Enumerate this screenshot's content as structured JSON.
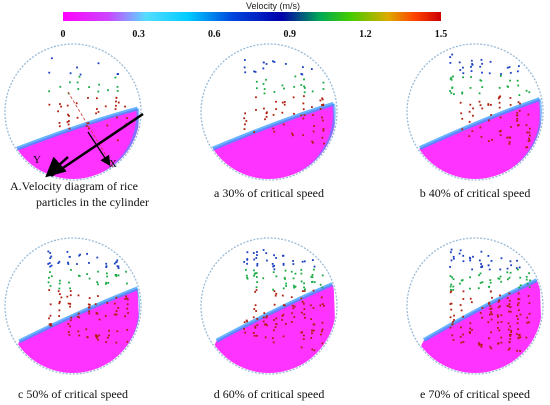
{
  "colorbar": {
    "title": "Velocity (m/s)",
    "ticks": [
      "0",
      "0.3",
      "0.6",
      "0.9",
      "1.2",
      "1.5"
    ],
    "colors": [
      "#ff00ff",
      "#cc33ff",
      "#66ccff",
      "#00e5ff",
      "#0033cc",
      "#0000aa",
      "#00aa44",
      "#33cc00",
      "#ccaa00",
      "#ff3300",
      "#cc0000"
    ]
  },
  "panels": [
    {
      "id": "A",
      "caption_line1": "A.Velocity diagram of rice",
      "caption_line2": "particles in the cylinder",
      "axis_x": "X",
      "axis_y": "Y",
      "critical_speed_pct": null
    },
    {
      "id": "a",
      "caption": "a 30% of critical speed",
      "critical_speed_pct": 30
    },
    {
      "id": "b",
      "caption": "b 40% of critical speed",
      "critical_speed_pct": 40
    },
    {
      "id": "c",
      "caption": "c 50% of critical speed",
      "critical_speed_pct": 50
    },
    {
      "id": "d",
      "caption": "d 60% of critical speed",
      "critical_speed_pct": 60
    },
    {
      "id": "e",
      "caption": "e 70% of critical speed",
      "critical_speed_pct": 70
    }
  ],
  "style": {
    "drum_outline": "#9bbbd8",
    "bed_color": "#ff33ff",
    "bed_edge": "#3399ff",
    "fast_particles": "#1a3fc0",
    "mid_particles": "#1aaa44",
    "slow_particles": "#b02010",
    "axis_color": "#000000",
    "dashed_axis": "#cc3333"
  }
}
